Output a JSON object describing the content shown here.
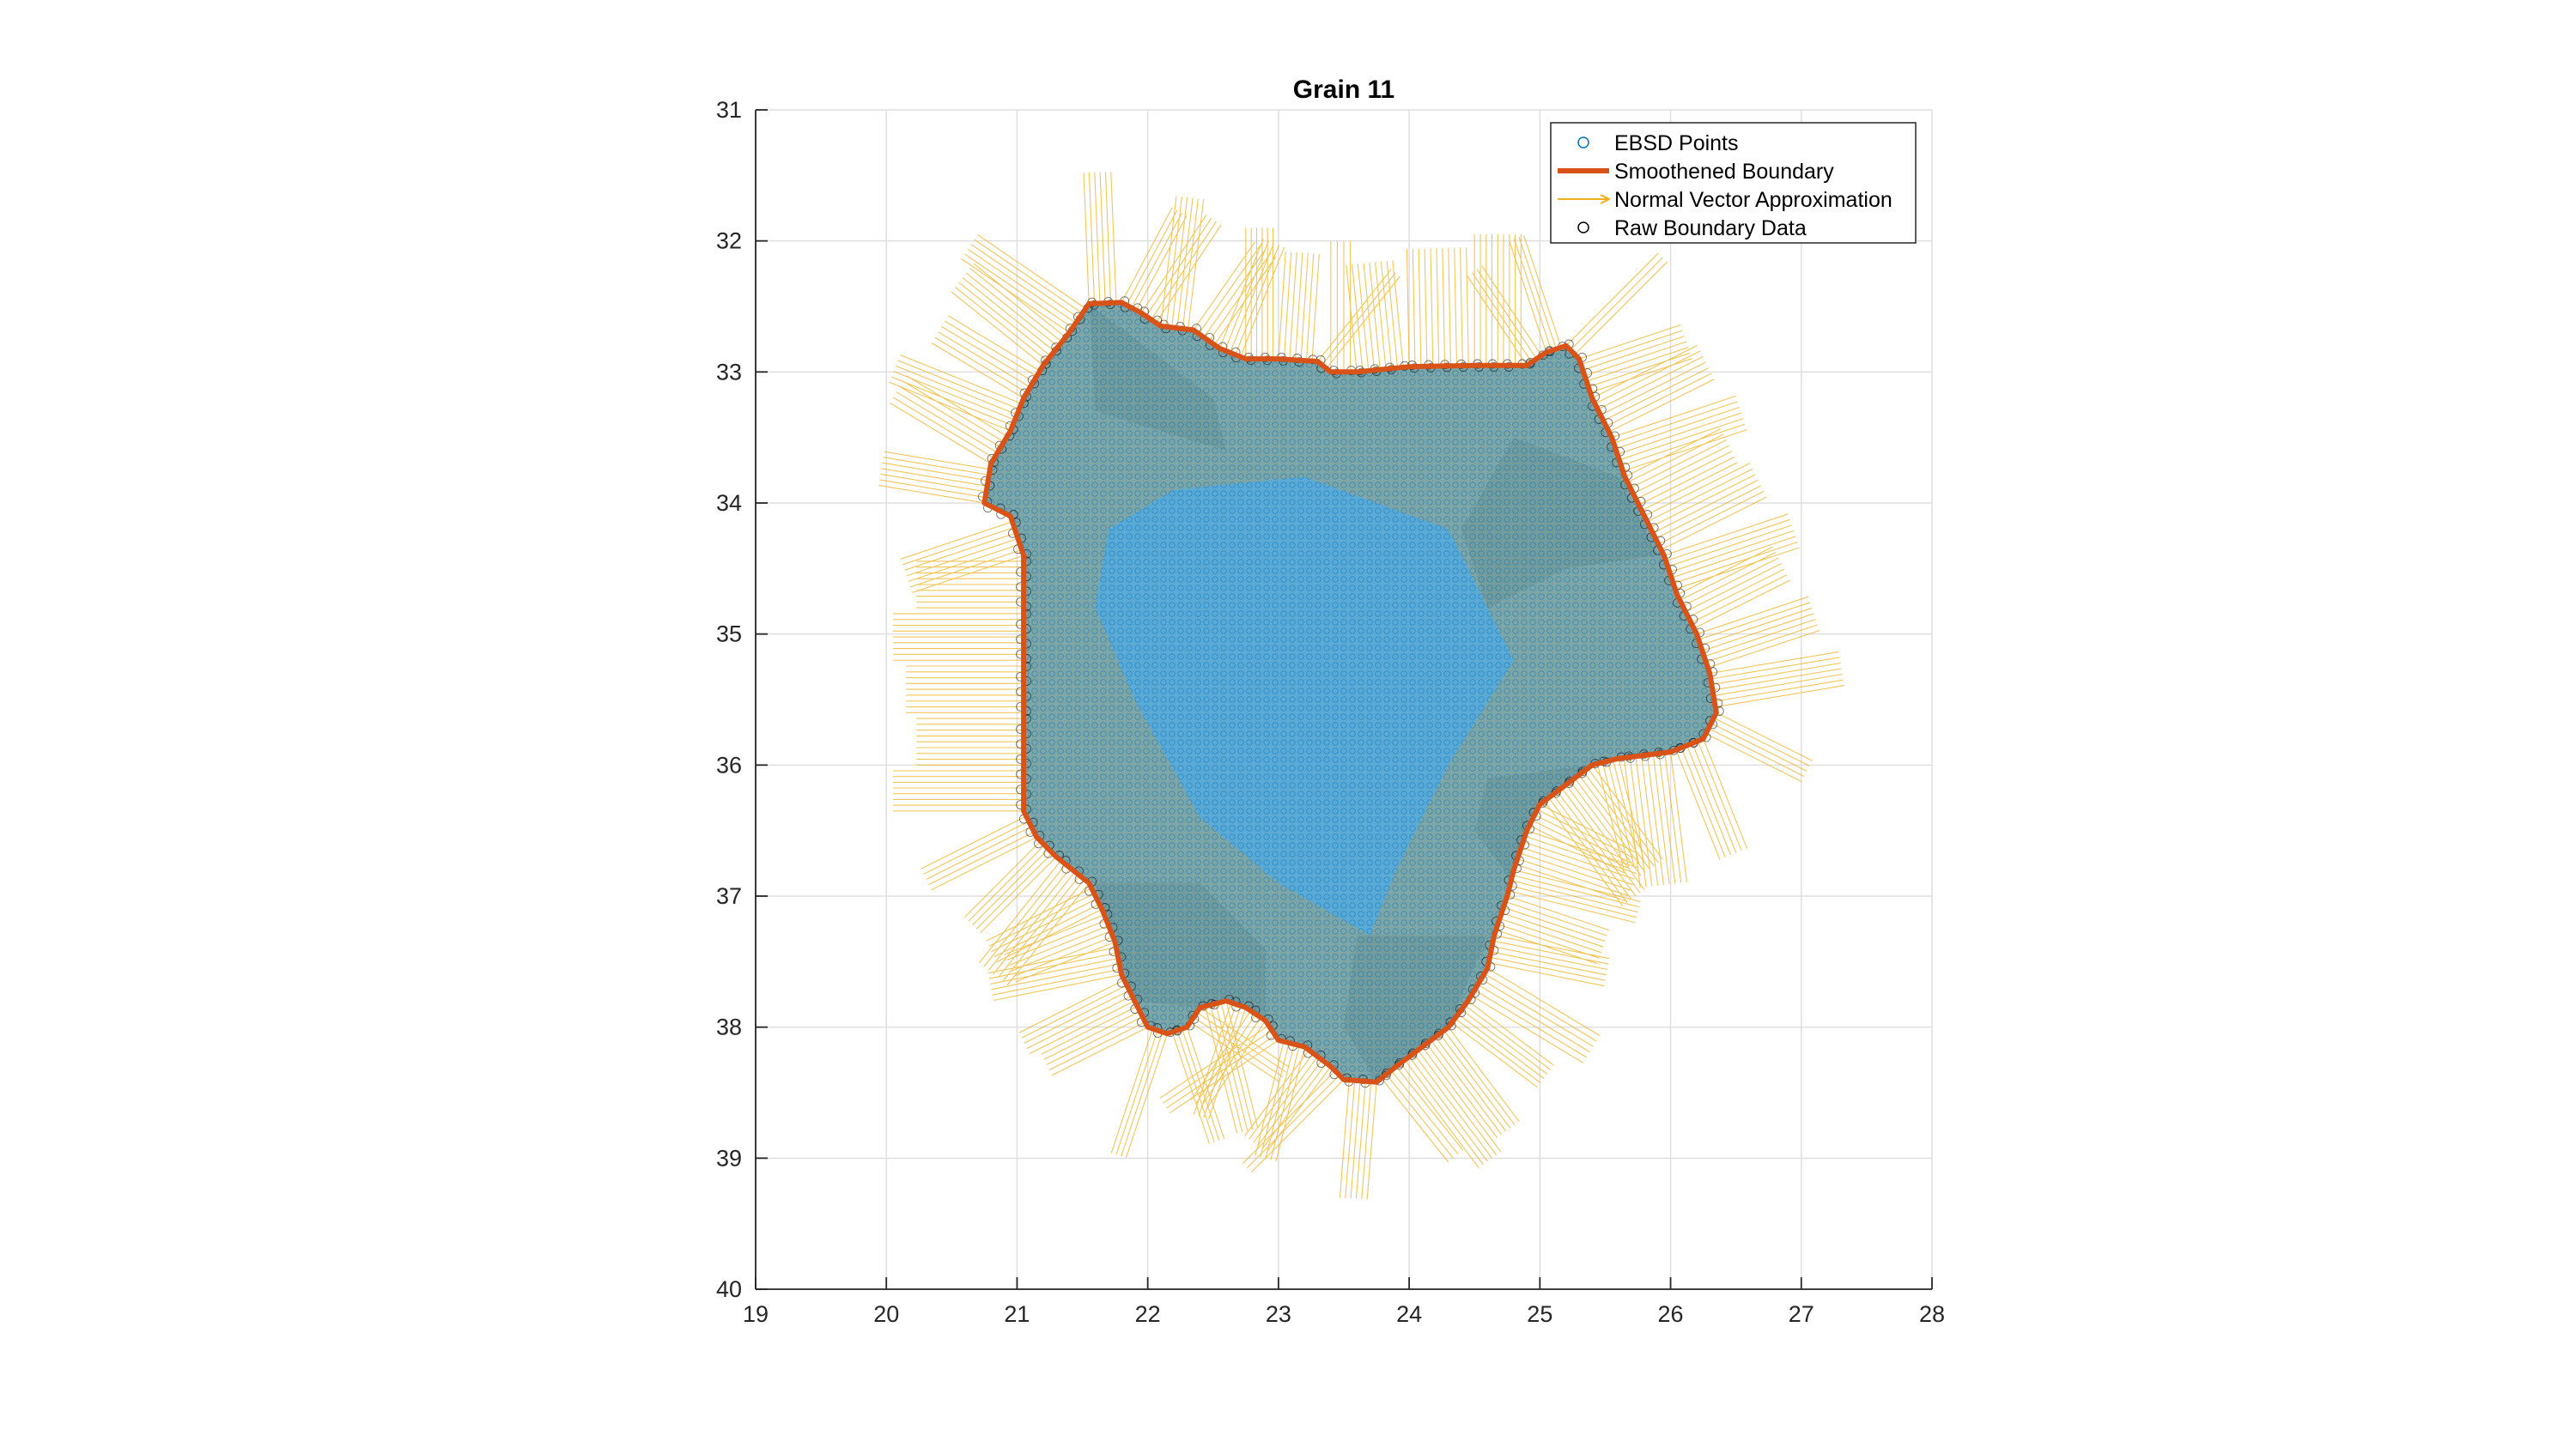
{
  "chart_data": {
    "type": "scatter",
    "title": "Grain 11",
    "xlabel": "",
    "ylabel": "",
    "xlim": [
      19,
      28
    ],
    "ylim": [
      31,
      40
    ],
    "y_reversed": true,
    "grid": true,
    "x_ticks": [
      "19",
      "20",
      "21",
      "22",
      "23",
      "24",
      "25",
      "26",
      "27",
      "28"
    ],
    "y_ticks": [
      "31",
      "32",
      "33",
      "34",
      "35",
      "36",
      "37",
      "38",
      "39",
      "40"
    ],
    "legend_position": "top-right",
    "colors": {
      "ebsd_points": "#0072BD",
      "interior_fill": "#5aaad8",
      "smoothened_boundary": "#D95319",
      "normal_vectors": "#EDB120",
      "raw_boundary": "#000000",
      "grid": "#dfdfdf",
      "axis": "#262626"
    },
    "series": [
      {
        "name": "EBSD Points",
        "marker": "circle",
        "line": "none"
      },
      {
        "name": "Smoothened Boundary",
        "marker": "none",
        "line": "solid-thick"
      },
      {
        "name": "Normal Vector Approximation",
        "marker": "arrow",
        "line": "quiver"
      },
      {
        "name": "Raw Boundary Data",
        "marker": "circle",
        "line": "none"
      }
    ],
    "boundary": [
      [
        21.55,
        32.48
      ],
      [
        21.8,
        32.47
      ],
      [
        21.95,
        32.55
      ],
      [
        22.1,
        32.65
      ],
      [
        22.35,
        32.68
      ],
      [
        22.55,
        32.82
      ],
      [
        22.75,
        32.9
      ],
      [
        23.0,
        32.9
      ],
      [
        23.3,
        32.92
      ],
      [
        23.4,
        33.0
      ],
      [
        23.6,
        33.0
      ],
      [
        24.0,
        32.96
      ],
      [
        24.5,
        32.95
      ],
      [
        24.9,
        32.95
      ],
      [
        25.05,
        32.85
      ],
      [
        25.2,
        32.8
      ],
      [
        25.3,
        32.9
      ],
      [
        25.4,
        33.2
      ],
      [
        25.55,
        33.5
      ],
      [
        25.65,
        33.8
      ],
      [
        25.8,
        34.1
      ],
      [
        25.95,
        34.4
      ],
      [
        26.05,
        34.7
      ],
      [
        26.2,
        35.0
      ],
      [
        26.3,
        35.3
      ],
      [
        26.35,
        35.6
      ],
      [
        26.25,
        35.8
      ],
      [
        26.0,
        35.9
      ],
      [
        25.6,
        35.95
      ],
      [
        25.4,
        36.0
      ],
      [
        25.2,
        36.15
      ],
      [
        25.0,
        36.3
      ],
      [
        24.9,
        36.5
      ],
      [
        24.8,
        36.8
      ],
      [
        24.75,
        37.0
      ],
      [
        24.65,
        37.3
      ],
      [
        24.6,
        37.55
      ],
      [
        24.45,
        37.8
      ],
      [
        24.3,
        38.0
      ],
      [
        24.1,
        38.15
      ],
      [
        23.9,
        38.3
      ],
      [
        23.75,
        38.42
      ],
      [
        23.5,
        38.4
      ],
      [
        23.4,
        38.3
      ],
      [
        23.2,
        38.15
      ],
      [
        23.0,
        38.1
      ],
      [
        22.9,
        37.95
      ],
      [
        22.75,
        37.85
      ],
      [
        22.6,
        37.8
      ],
      [
        22.4,
        37.85
      ],
      [
        22.3,
        38.0
      ],
      [
        22.15,
        38.05
      ],
      [
        22.0,
        38.0
      ],
      [
        21.9,
        37.8
      ],
      [
        21.8,
        37.6
      ],
      [
        21.75,
        37.35
      ],
      [
        21.65,
        37.1
      ],
      [
        21.55,
        36.9
      ],
      [
        21.3,
        36.7
      ],
      [
        21.15,
        36.55
      ],
      [
        21.05,
        36.35
      ],
      [
        21.05,
        36.0
      ],
      [
        21.05,
        35.6
      ],
      [
        21.05,
        35.2
      ],
      [
        21.05,
        34.8
      ],
      [
        21.05,
        34.4
      ],
      [
        20.95,
        34.1
      ],
      [
        20.75,
        34.0
      ],
      [
        20.8,
        33.7
      ],
      [
        20.95,
        33.45
      ],
      [
        21.05,
        33.2
      ],
      [
        21.2,
        32.95
      ],
      [
        21.4,
        32.7
      ]
    ],
    "interior_shading": [
      {
        "type": "lighter",
        "points": [
          [
            22.2,
            33.9
          ],
          [
            23.2,
            33.8
          ],
          [
            24.3,
            34.2
          ],
          [
            24.8,
            35.2
          ],
          [
            24.3,
            36.0
          ],
          [
            23.9,
            36.8
          ],
          [
            23.7,
            37.3
          ],
          [
            23.0,
            36.9
          ],
          [
            22.4,
            36.4
          ],
          [
            21.9,
            35.5
          ],
          [
            21.6,
            34.8
          ],
          [
            21.7,
            34.2
          ]
        ]
      },
      {
        "type": "darker",
        "points": [
          [
            24.8,
            33.5
          ],
          [
            25.6,
            33.8
          ],
          [
            25.9,
            34.4
          ],
          [
            25.2,
            34.5
          ],
          [
            24.6,
            34.8
          ],
          [
            24.4,
            34.2
          ]
        ]
      },
      {
        "type": "darker",
        "points": [
          [
            25.4,
            36.0
          ],
          [
            25.0,
            36.3
          ],
          [
            24.8,
            36.9
          ],
          [
            24.5,
            36.5
          ],
          [
            24.6,
            36.1
          ]
        ]
      },
      {
        "type": "darker",
        "points": [
          [
            21.6,
            36.9
          ],
          [
            22.4,
            36.9
          ],
          [
            22.9,
            37.4
          ],
          [
            22.9,
            37.95
          ],
          [
            22.4,
            37.85
          ],
          [
            21.9,
            37.8
          ]
        ]
      },
      {
        "type": "darker",
        "points": [
          [
            23.6,
            37.3
          ],
          [
            24.6,
            37.3
          ],
          [
            24.3,
            38.0
          ],
          [
            23.75,
            38.42
          ],
          [
            23.5,
            38.0
          ]
        ]
      },
      {
        "type": "darker",
        "points": [
          [
            21.55,
            32.48
          ],
          [
            22.5,
            33.2
          ],
          [
            22.6,
            33.6
          ],
          [
            21.6,
            33.3
          ]
        ]
      }
    ]
  }
}
